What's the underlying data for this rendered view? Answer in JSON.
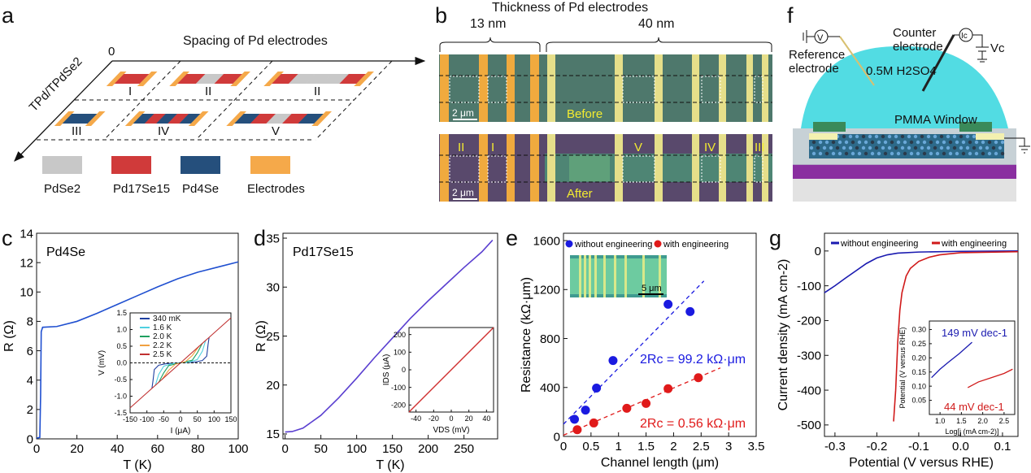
{
  "panel_labels": [
    "a",
    "b",
    "c",
    "d",
    "e",
    "f",
    "g"
  ],
  "panel_a": {
    "x_axis_label": "Spacing of Pd electrodes",
    "origin_label": "0",
    "y_axis_label": "TPd/TPdSe2",
    "materials": {
      "G": "#c8c8c8",
      "R": "#d03a3a",
      "B": "#254f7c",
      "E": "#f5a94a"
    },
    "devices": [
      {
        "label": "I",
        "segments": [
          "E",
          "R",
          "E"
        ]
      },
      {
        "label": "II",
        "segments": [
          "E",
          "R",
          "G",
          "R",
          "E"
        ]
      },
      {
        "label": "II",
        "segments": [
          "E",
          "R",
          "G",
          "G",
          "G",
          "R",
          "E"
        ]
      },
      {
        "label": "III",
        "segments": [
          "E",
          "B",
          "E"
        ]
      },
      {
        "label": "IV",
        "segments": [
          "E",
          "B",
          "R",
          "B",
          "R",
          "B",
          "E"
        ]
      },
      {
        "label": "V",
        "segments": [
          "E",
          "B",
          "R",
          "G",
          "R",
          "B",
          "E"
        ]
      }
    ],
    "legend": [
      "PdSe2",
      "Pd17Se15",
      "Pd4Se",
      "Electrodes"
    ]
  },
  "panel_b": {
    "title": "Thickness of Pd electrodes",
    "group_left": "13 nm",
    "group_right": "40 nm",
    "scale_bar": "2 μm",
    "before_label": "Before",
    "after_label": "After",
    "region_labels": [
      "II",
      "I",
      "V",
      "IV",
      "III"
    ]
  },
  "panel_f": {
    "reference_electrode": [
      "Reference",
      "electrode"
    ],
    "counter_electrode": [
      "Counter",
      "electrode"
    ],
    "electrolyte": "0.5M H2SO4",
    "window": "PMMA Window",
    "voltmeter": "V",
    "ammeter": "Ic",
    "voltage_source": "Vc"
  },
  "chart_data": [
    {
      "panel": "c",
      "type": "line",
      "annotation": "Pd4Se",
      "xlabel": "T (K)",
      "ylabel": "R (Ω)",
      "xlim": [
        0,
        100
      ],
      "ylim": [
        0,
        14
      ],
      "xticks": [
        0,
        20,
        40,
        60,
        80,
        100
      ],
      "yticks": [
        0,
        2,
        4,
        6,
        8,
        10,
        12,
        14
      ],
      "series": [
        {
          "color": "#1f4fd0",
          "points": [
            [
              0,
              0.05
            ],
            [
              1.6,
              0.1
            ],
            [
              2.0,
              3
            ],
            [
              2.3,
              7.3
            ],
            [
              3,
              7.6
            ],
            [
              10,
              7.65
            ],
            [
              20,
              8.0
            ],
            [
              30,
              8.55
            ],
            [
              40,
              9.15
            ],
            [
              50,
              9.75
            ],
            [
              60,
              10.35
            ],
            [
              70,
              10.9
            ],
            [
              80,
              11.35
            ],
            [
              90,
              11.7
            ],
            [
              100,
              12.05
            ]
          ]
        }
      ]
    },
    {
      "panel": "c-inset",
      "type": "line",
      "xlabel": "I (μA)",
      "ylabel": "V (mV)",
      "xlim": [
        -150,
        150
      ],
      "ylim": [
        -1.5,
        1.5
      ],
      "xticks": [
        -150,
        -100,
        -50,
        0,
        50,
        100,
        150
      ],
      "yticks": [
        -1.5,
        -1.0,
        -0.5,
        0.0,
        0.5,
        1.0,
        1.5
      ],
      "series": [
        {
          "name": "340 mK",
          "color": "#1f3fa0",
          "points": [
            [
              -85,
              -0.76
            ],
            [
              -82,
              -0.55
            ],
            [
              -78,
              -0.2
            ],
            [
              -65,
              -0.07
            ],
            [
              -40,
              -0.02
            ],
            [
              0,
              0
            ],
            [
              40,
              0.02
            ],
            [
              65,
              0.07
            ],
            [
              78,
              0.2
            ],
            [
              82,
              0.55
            ],
            [
              85,
              0.76
            ]
          ]
        },
        {
          "name": "1.6 K",
          "color": "#4fd0e0",
          "points": [
            [
              -75,
              -0.68
            ],
            [
              -65,
              -0.35
            ],
            [
              -50,
              -0.1
            ],
            [
              -25,
              -0.02
            ],
            [
              0,
              0
            ],
            [
              25,
              0.02
            ],
            [
              50,
              0.1
            ],
            [
              65,
              0.35
            ],
            [
              75,
              0.68
            ]
          ]
        },
        {
          "name": "2.0 K",
          "color": "#1fa060",
          "points": [
            [
              -65,
              -0.59
            ],
            [
              -50,
              -0.3
            ],
            [
              -35,
              -0.08
            ],
            [
              0,
              0
            ],
            [
              35,
              0.08
            ],
            [
              50,
              0.3
            ],
            [
              65,
              0.59
            ]
          ]
        },
        {
          "name": "2.2 K",
          "color": "#f0a040",
          "points": [
            [
              -55,
              -0.5
            ],
            [
              -35,
              -0.22
            ],
            [
              -15,
              -0.04
            ],
            [
              0,
              0
            ],
            [
              15,
              0.04
            ],
            [
              35,
              0.22
            ],
            [
              55,
              0.5
            ]
          ]
        },
        {
          "name": "2.5 K",
          "color": "#c03030",
          "points": [
            [
              -150,
              -1.35
            ],
            [
              150,
              1.35
            ]
          ]
        }
      ]
    },
    {
      "panel": "d",
      "type": "line",
      "annotation": "Pd17Se15",
      "xlabel": "T (K)",
      "ylabel": "R (Ω)",
      "xlim": [
        -3,
        297
      ],
      "ylim": [
        14.5,
        35.5
      ],
      "xticks": [
        0,
        50,
        100,
        150,
        200,
        250
      ],
      "yticks": [
        15,
        20,
        25,
        30,
        35
      ],
      "series": [
        {
          "color": "#5a3fd0",
          "points": [
            [
              0,
              15.2
            ],
            [
              10,
              15.25
            ],
            [
              25,
              15.6
            ],
            [
              50,
              16.9
            ],
            [
              75,
              18.7
            ],
            [
              100,
              20.7
            ],
            [
              125,
              22.8
            ],
            [
              150,
              24.8
            ],
            [
              175,
              26.8
            ],
            [
              200,
              28.6
            ],
            [
              225,
              30.3
            ],
            [
              250,
              32
            ],
            [
              275,
              33.6
            ],
            [
              290,
              34.8
            ]
          ]
        }
      ]
    },
    {
      "panel": "d-inset",
      "type": "line",
      "xlabel": "VDS (mV)",
      "ylabel": "IDS (μA)",
      "xlim": [
        -48,
        48
      ],
      "ylim": [
        -240,
        240
      ],
      "xticks": [
        -40,
        -20,
        0,
        20,
        40
      ],
      "yticks": [
        -200,
        -100,
        0,
        100,
        200
      ],
      "series": [
        {
          "color": "#d03030",
          "points": [
            [
              -48,
              -240
            ],
            [
              48,
              240
            ]
          ]
        }
      ]
    },
    {
      "panel": "e",
      "type": "scatter",
      "xlabel": "Channel length  (μm)",
      "ylabel": "Resistance  (kΩ·μm)",
      "xlim": [
        0,
        3.5
      ],
      "ylim": [
        0,
        1660
      ],
      "xticks": [
        0.0,
        0.5,
        1.0,
        1.5,
        2.0,
        2.5,
        3.0,
        3.5
      ],
      "yticks": [
        0,
        400,
        800,
        1200,
        1600
      ],
      "legend_position": "top",
      "inset_scale_bar": "5 μm",
      "series": [
        {
          "name": "without engineering",
          "color": "#1a1ae0",
          "points": [
            [
              0.2,
              140
            ],
            [
              0.4,
              215
            ],
            [
              0.6,
              395
            ],
            [
              0.9,
              620
            ],
            [
              1.9,
              1080
            ],
            [
              2.3,
              1020
            ]
          ],
          "fit": [
            [
              0,
              100
            ],
            [
              2.55,
              1270
            ]
          ],
          "fit_label": "2Rc = 99.2 kΩ·μm"
        },
        {
          "name": "with engineering",
          "color": "#e01a1a",
          "points": [
            [
              0.25,
              55
            ],
            [
              0.55,
              110
            ],
            [
              1.15,
              230
            ],
            [
              1.5,
              270
            ],
            [
              1.9,
              390
            ],
            [
              2.45,
              480
            ]
          ],
          "fit": [
            [
              0,
              10
            ],
            [
              2.85,
              560
            ]
          ],
          "fit_label": "2Rc = 0.56 kΩ·μm"
        }
      ]
    },
    {
      "panel": "g",
      "type": "line",
      "xlabel": "Potential (V versus RHE)",
      "ylabel": "Current density (mA cm-2)",
      "xlim": [
        -0.325,
        0.137
      ],
      "ylim": [
        -533,
        51
      ],
      "xticks": [
        -0.3,
        -0.2,
        -0.1,
        0.0,
        0.1
      ],
      "yticks": [
        -500,
        -400,
        -300,
        -200,
        -100,
        0
      ],
      "legend_position": "top",
      "series": [
        {
          "name": "without engineering",
          "color": "#1a1ab0",
          "points": [
            [
              -0.325,
              -120
            ],
            [
              -0.3,
              -100
            ],
            [
              -0.275,
              -78
            ],
            [
              -0.25,
              -57
            ],
            [
              -0.225,
              -36
            ],
            [
              -0.2,
              -20
            ],
            [
              -0.175,
              -11
            ],
            [
              -0.15,
              -6
            ],
            [
              -0.1,
              -3
            ],
            [
              0,
              -1
            ],
            [
              0.137,
              0
            ]
          ]
        },
        {
          "name": "with engineering",
          "color": "#d01a1a",
          "points": [
            [
              -0.16,
              -490
            ],
            [
              -0.155,
              -400
            ],
            [
              -0.15,
              -260
            ],
            [
              -0.145,
              -170
            ],
            [
              -0.14,
              -120
            ],
            [
              -0.13,
              -72
            ],
            [
              -0.12,
              -50
            ],
            [
              -0.1,
              -30
            ],
            [
              -0.075,
              -18
            ],
            [
              -0.05,
              -11
            ],
            [
              0,
              -5
            ],
            [
              0.137,
              -2
            ]
          ]
        }
      ]
    },
    {
      "panel": "g-inset",
      "type": "line",
      "xlabel": "Log[j (mA cm-2)]",
      "ylabel": "Potential (V versus RHE)",
      "xlim": [
        0.75,
        2.75
      ],
      "ylim": [
        0.0,
        0.33
      ],
      "xticks": [
        1.0,
        1.5,
        2.0,
        2.5
      ],
      "yticks": [
        0.05,
        0.1,
        0.15,
        0.2,
        0.25,
        0.3
      ],
      "series": [
        {
          "color": "#1a1ab0",
          "points": [
            [
              0.8,
              0.13
            ],
            [
              1.0,
              0.16
            ],
            [
              1.2,
              0.185
            ],
            [
              1.45,
              0.215
            ],
            [
              1.75,
              0.255
            ]
          ],
          "label": "149 mV dec-1"
        },
        {
          "color": "#d01a1a",
          "points": [
            [
              1.65,
              0.095
            ],
            [
              1.9,
              0.115
            ],
            [
              2.2,
              0.13
            ],
            [
              2.5,
              0.145
            ],
            [
              2.7,
              0.16
            ]
          ],
          "label": "44 mV dec-1"
        }
      ]
    }
  ]
}
